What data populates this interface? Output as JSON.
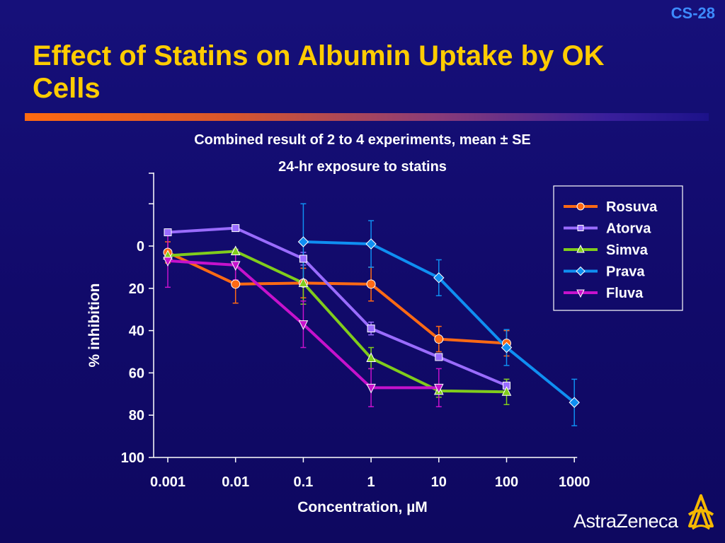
{
  "slide": {
    "number": "CS-28",
    "title": "Effect of Statins on Albumin Uptake by OK Cells"
  },
  "brand": {
    "name": "AstraZeneca"
  },
  "colors": {
    "background": "#120a6e",
    "title": "#ffcc00",
    "slide_number": "#3d8bff",
    "rosuva": "#ff6a14",
    "atorva": "#9a6cff",
    "simva": "#80cc1c",
    "prava": "#0f8ff2",
    "fluva": "#c612cc"
  },
  "chart_data": {
    "type": "line",
    "subtitle_lines": [
      "Combined result of 2 to 4 experiments, mean ± SE",
      "24-hr exposure to statins"
    ],
    "xlabel": "Concentration, µM",
    "ylabel": "% inhibition",
    "x_scale": "log",
    "x_ticks": [
      0.001,
      0.01,
      0.1,
      1,
      10,
      100,
      1000
    ],
    "x_tick_labels": [
      "0.001",
      "0.01",
      "0.1",
      "1",
      "10",
      "100",
      "1000"
    ],
    "y_ticks": [
      0,
      20,
      40,
      60,
      80,
      100
    ],
    "y_tick_labels": [
      "0",
      "20",
      "40",
      "60",
      "80",
      "100"
    ],
    "ylim": [
      -35,
      100
    ],
    "y_inverted": true,
    "grid": false,
    "legend_position": "top-right",
    "series": [
      {
        "name": "Rosuva",
        "color": "#ff6a14",
        "marker": "circle",
        "x": [
          0.001,
          0.01,
          0.1,
          1,
          10,
          100
        ],
        "y": [
          3,
          18,
          17.5,
          18,
          44,
          46
        ],
        "err": [
          5,
          9,
          7,
          8,
          6,
          6
        ]
      },
      {
        "name": "Atorva",
        "color": "#9a6cff",
        "marker": "square",
        "x": [
          0.001,
          0.01,
          0.1,
          1,
          10,
          100
        ],
        "y": [
          -6.5,
          -8.5,
          6,
          39,
          52.5,
          66
        ],
        "err": [
          1.5,
          0,
          3,
          3,
          0,
          3
        ]
      },
      {
        "name": "Simva",
        "color": "#80cc1c",
        "marker": "triangle-up",
        "x": [
          0.001,
          0.01,
          0.1,
          1,
          10,
          100
        ],
        "y": [
          4.5,
          2.5,
          17.5,
          53,
          68.5,
          69
        ],
        "err": [
          2,
          1,
          10,
          5,
          3,
          6
        ]
      },
      {
        "name": "Prava",
        "color": "#0f8ff2",
        "marker": "diamond",
        "x": [
          0.1,
          1,
          10,
          100,
          1000
        ],
        "y": [
          -2,
          -1,
          15,
          48,
          74
        ],
        "err": [
          18,
          11,
          8.5,
          8.5,
          11
        ]
      },
      {
        "name": "Fluva",
        "color": "#c612cc",
        "marker": "triangle-down",
        "x": [
          0.001,
          0.01,
          0.1,
          1,
          10
        ],
        "y": [
          7,
          9,
          37,
          67,
          67
        ],
        "err": [
          12.5,
          7,
          11,
          9,
          9
        ]
      }
    ]
  }
}
